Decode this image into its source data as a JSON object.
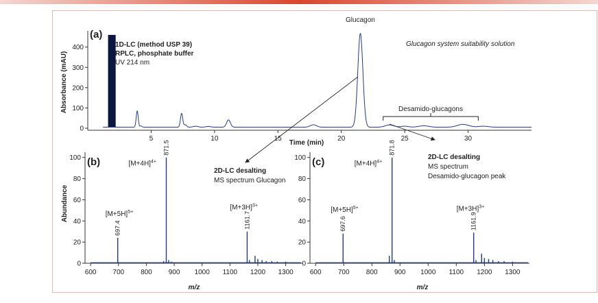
{
  "chart_data": [
    {
      "type": "line",
      "panel_label": "(a)",
      "description_lines": [
        "1D-LC (method USP 39)",
        "RPLC, phosphate buffer",
        "UV 214 nm"
      ],
      "top_right_note": "Glucagon system suitability solution",
      "xlabel": "Time (min)",
      "ylabel": "Absorbance (mAU)",
      "xlim": [
        0,
        35
      ],
      "ylim": [
        -10,
        480
      ],
      "xticks": [
        5,
        10,
        15,
        20,
        25,
        30
      ],
      "yticks": [
        0,
        100,
        200,
        300,
        400
      ],
      "series": [
        {
          "name": "UV 214 nm",
          "peaks": [
            {
              "t": 3.9,
              "h": 80,
              "w": 0.08
            },
            {
              "t": 4.2,
              "h": 6,
              "w": 0.08
            },
            {
              "t": 7.4,
              "h": 68,
              "w": 0.09
            },
            {
              "t": 7.7,
              "h": 12,
              "w": 0.1
            },
            {
              "t": 8.5,
              "h": 5,
              "w": 0.2
            },
            {
              "t": 9.5,
              "h": 4,
              "w": 0.2
            },
            {
              "t": 11.1,
              "h": 36,
              "w": 0.15
            },
            {
              "t": 17.8,
              "h": 12,
              "w": 0.25
            },
            {
              "t": 21.5,
              "h": 462,
              "w": 0.2
            },
            {
              "t": 23.8,
              "h": 11,
              "w": 0.35
            },
            {
              "t": 25.0,
              "h": 5,
              "w": 0.3
            },
            {
              "t": 26.5,
              "h": 7,
              "w": 0.4
            },
            {
              "t": 29.6,
              "h": 14,
              "w": 0.45
            },
            {
              "t": 31.2,
              "h": 5,
              "w": 0.4
            }
          ],
          "baseline": 5
        }
      ],
      "injection_bar": {
        "x_start": 1.6,
        "x_end": 2.2,
        "value": 460
      },
      "annotations": [
        {
          "text": "Glucagon",
          "x": 21.5
        },
        {
          "text": "Desamido-glucagons",
          "x_start": 23.3,
          "x_end": 30.8
        }
      ]
    },
    {
      "type": "bar",
      "panel_label": "(b)",
      "title_bold": "2D-LC desalting",
      "title_line2": "MS spectrum Glucagon",
      "xlabel": "m/z",
      "ylabel": "Abundance",
      "xlim": [
        580,
        1360
      ],
      "ylim": [
        0,
        105
      ],
      "xticks": [
        600,
        700,
        800,
        900,
        1000,
        1100,
        1200,
        1300
      ],
      "yticks": [
        0,
        20,
        40,
        60,
        80,
        100
      ],
      "peaks": [
        {
          "mz": 697.4,
          "value": 24,
          "label": "697.4",
          "ion": "[M+5H]",
          "charge": "5+"
        },
        {
          "mz": 871.5,
          "value": 100,
          "label": "871.5",
          "ion": "[M+4H]",
          "charge": "4+"
        },
        {
          "mz": 1161.7,
          "value": 30,
          "label": "1161.7",
          "ion": "[M+3H]",
          "charge": "3+"
        }
      ],
      "minor_peaks": [
        {
          "mz": 862,
          "value": 2
        },
        {
          "mz": 880,
          "value": 3
        },
        {
          "mz": 890,
          "value": 1.5
        },
        {
          "mz": 1170,
          "value": 3
        },
        {
          "mz": 1190,
          "value": 7
        },
        {
          "mz": 1200,
          "value": 4
        },
        {
          "mz": 1215,
          "value": 3
        },
        {
          "mz": 1230,
          "value": 2
        },
        {
          "mz": 1250,
          "value": 2
        },
        {
          "mz": 1270,
          "value": 1.5
        },
        {
          "mz": 1300,
          "value": 1.5
        }
      ]
    },
    {
      "type": "bar",
      "panel_label": "(c)",
      "title_bold": "2D-LC desalting",
      "title_line2": "MS spectrum",
      "title_line3": "Desamido-glucagon peak",
      "xlabel": "m/z",
      "ylabel": "",
      "xlim": [
        580,
        1360
      ],
      "ylim": [
        0,
        105
      ],
      "xticks": [
        600,
        700,
        800,
        900,
        1000,
        1100,
        1200,
        1300
      ],
      "yticks": [
        0,
        20,
        40,
        60,
        80,
        100
      ],
      "peaks": [
        {
          "mz": 697.6,
          "value": 28,
          "label": "697.6",
          "ion": "[M+5H]",
          "charge": "5+"
        },
        {
          "mz": 871.8,
          "value": 100,
          "label": "871.8",
          "ion": "[M+4H]",
          "charge": "4+"
        },
        {
          "mz": 1161.9,
          "value": 29,
          "label": "1161.9",
          "ion": "[M+3H]",
          "charge": "3+"
        }
      ],
      "minor_peaks": [
        {
          "mz": 862,
          "value": 7
        },
        {
          "mz": 880,
          "value": 3
        },
        {
          "mz": 1170,
          "value": 3
        },
        {
          "mz": 1190,
          "value": 9
        },
        {
          "mz": 1200,
          "value": 5
        },
        {
          "mz": 1215,
          "value": 4
        },
        {
          "mz": 1230,
          "value": 3
        },
        {
          "mz": 1250,
          "value": 2
        },
        {
          "mz": 1270,
          "value": 2
        },
        {
          "mz": 1300,
          "value": 1.5
        }
      ]
    }
  ]
}
